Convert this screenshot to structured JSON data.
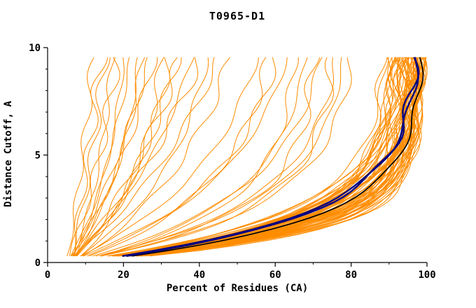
{
  "chart_data": {
    "type": "line",
    "title": "T0965-D1",
    "xlabel": "Percent of Residues (CA)",
    "ylabel": "Distance Cutoff, A",
    "xlim": [
      0,
      100
    ],
    "ylim": [
      0,
      10
    ],
    "x_ticks": [
      0,
      20,
      40,
      60,
      80,
      100
    ],
    "x_minor_ticks": [
      10,
      30,
      50,
      70,
      90
    ],
    "y_ticks": [
      0,
      5,
      10
    ],
    "y_minor_ticks": [
      1,
      2,
      3,
      4,
      6,
      7,
      8,
      9
    ],
    "grid": false,
    "legend": "none",
    "colors": {
      "ensemble": "#ff8c00",
      "highlight": "#000080",
      "reference": "#000000",
      "axis": "#000000",
      "background": "#ffffff"
    },
    "curve_model": "x(y) = x0 + (xend - x0) * (1 - exp(-k*y/9.5)) / (1 - exp(-k)); each curve listed as [x0, xend, k]; y sampled 0.3 to 9.55",
    "series": {
      "ensemble_name": "server model accuracy curves",
      "ensemble_params": [
        [
          5,
          99,
          6.5
        ],
        [
          6,
          98,
          5.8
        ],
        [
          4,
          97,
          7.2
        ],
        [
          7,
          99,
          4.9
        ],
        [
          5,
          96,
          6.1
        ],
        [
          6,
          95,
          5.2
        ],
        [
          8,
          99,
          4.4
        ],
        [
          5,
          94,
          6.8
        ],
        [
          7,
          97,
          5.5
        ],
        [
          4,
          98,
          7.6
        ],
        [
          6,
          93,
          4.7
        ],
        [
          5,
          99,
          5.9
        ],
        [
          7,
          96,
          6.3
        ],
        [
          8,
          95,
          4.1
        ],
        [
          4,
          92,
          6.6
        ],
        [
          6,
          99,
          7.0
        ],
        [
          5,
          97,
          4.5
        ],
        [
          7,
          94,
          5.7
        ],
        [
          6,
          96,
          6.9
        ],
        [
          5,
          98,
          5.3
        ],
        [
          8,
          97,
          4.8
        ],
        [
          4,
          95,
          7.4
        ],
        [
          6,
          91,
          5.0
        ],
        [
          7,
          98,
          6.2
        ],
        [
          5,
          93,
          5.6
        ],
        [
          6,
          97,
          7.8
        ],
        [
          8,
          96,
          4.3
        ],
        [
          4,
          99,
          6.0
        ],
        [
          5,
          95,
          5.4
        ],
        [
          7,
          92,
          4.6
        ],
        [
          6,
          98,
          6.7
        ],
        [
          5,
          90,
          5.1
        ],
        [
          7,
          97,
          7.1
        ],
        [
          4,
          94,
          4.9
        ],
        [
          6,
          96,
          5.8
        ],
        [
          8,
          98,
          6.4
        ],
        [
          5,
          92,
          4.2
        ],
        [
          6,
          94,
          6.1
        ],
        [
          7,
          99,
          5.5
        ],
        [
          4,
          96,
          6.9
        ],
        [
          5,
          97,
          7.5
        ],
        [
          6,
          89,
          4.4
        ],
        [
          7,
          95,
          5.9
        ],
        [
          5,
          98,
          4.7
        ],
        [
          8,
          93,
          6.3
        ],
        [
          4,
          97,
          5.2
        ],
        [
          6,
          99,
          4.0
        ],
        [
          5,
          96,
          6.6
        ],
        [
          7,
          91,
          5.0
        ],
        [
          6,
          95,
          7.3
        ],
        [
          5,
          99,
          4.6
        ],
        [
          4,
          93,
          5.7
        ],
        [
          8,
          97,
          6.0
        ],
        [
          6,
          92,
          4.8
        ],
        [
          5,
          94,
          7.0
        ],
        [
          7,
          96,
          4.3
        ],
        [
          6,
          90,
          5.5
        ],
        [
          5,
          95,
          6.2
        ],
        [
          4,
          98,
          4.5
        ],
        [
          7,
          93,
          5.3
        ],
        [
          6,
          97,
          6.8
        ],
        [
          8,
          94,
          3.9
        ],
        [
          5,
          91,
          4.9
        ],
        [
          6,
          88,
          5.6
        ],
        [
          7,
          98,
          7.7
        ],
        [
          5,
          78,
          3.5
        ],
        [
          6,
          72,
          2.8
        ],
        [
          7,
          65,
          3.9
        ],
        [
          5,
          60,
          2.4
        ],
        [
          6,
          75,
          4.2
        ],
        [
          8,
          68,
          3.1
        ],
        [
          5,
          55,
          2.0
        ],
        [
          6,
          80,
          3.7
        ],
        [
          7,
          58,
          2.6
        ],
        [
          5,
          70,
          4.4
        ],
        [
          6,
          63,
          2.2
        ],
        [
          7,
          76,
          3.3
        ],
        [
          5,
          12,
          0.6
        ],
        [
          6,
          15,
          0.9
        ],
        [
          5,
          18,
          1.2
        ],
        [
          7,
          22,
          0.7
        ],
        [
          6,
          25,
          1.5
        ],
        [
          5,
          28,
          1.0
        ],
        [
          6,
          32,
          1.8
        ],
        [
          7,
          35,
          0.8
        ],
        [
          5,
          38,
          1.3
        ],
        [
          6,
          42,
          2.0
        ],
        [
          5,
          45,
          1.1
        ],
        [
          7,
          48,
          1.6
        ],
        [
          6,
          14,
          0.5
        ],
        [
          5,
          20,
          1.9
        ],
        [
          6,
          27,
          0.6
        ],
        [
          7,
          30,
          2.2
        ],
        [
          5,
          34,
          1.4
        ],
        [
          6,
          40,
          0.9
        ],
        [
          5,
          24,
          2.1
        ],
        [
          6,
          17,
          1.7
        ]
      ],
      "reference_black_params": [
        9,
        98.5,
        5.0
      ],
      "highlight_navy_params": [
        [
          8,
          97.5,
          4.4
        ],
        [
          8.5,
          96.8,
          4.6
        ]
      ]
    }
  }
}
